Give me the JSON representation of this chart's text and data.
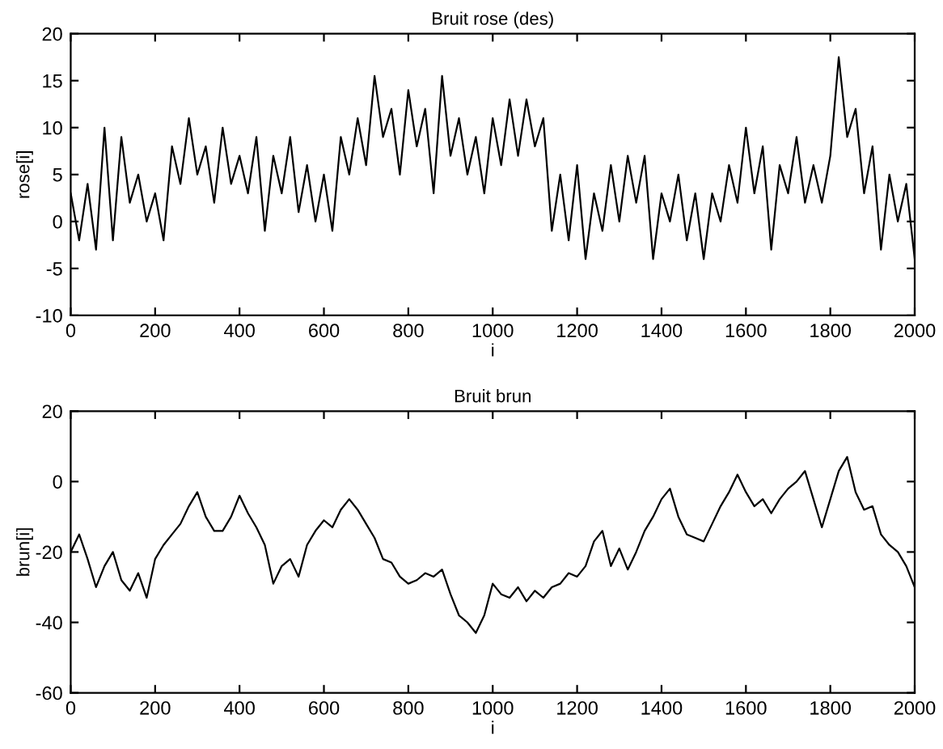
{
  "chart_data": [
    {
      "type": "line",
      "title": "Bruit rose (des)",
      "xlabel": "i",
      "ylabel": "rose[i]",
      "xlim": [
        0,
        2000
      ],
      "ylim": [
        -10,
        20
      ],
      "xticks": [
        0,
        200,
        400,
        600,
        800,
        1000,
        1200,
        1400,
        1600,
        1800,
        2000
      ],
      "yticks": [
        -10,
        -5,
        0,
        5,
        10,
        15,
        20
      ],
      "grid": false,
      "legend": false,
      "series": [
        {
          "color": "#000000",
          "x": [
            0,
            20,
            40,
            60,
            80,
            100,
            120,
            140,
            160,
            180,
            200,
            220,
            240,
            260,
            280,
            300,
            320,
            340,
            360,
            380,
            400,
            420,
            440,
            460,
            480,
            500,
            520,
            540,
            560,
            580,
            600,
            620,
            640,
            660,
            680,
            700,
            720,
            740,
            760,
            780,
            800,
            820,
            840,
            860,
            880,
            900,
            920,
            940,
            960,
            980,
            1000,
            1020,
            1040,
            1060,
            1080,
            1100,
            1120,
            1140,
            1160,
            1180,
            1200,
            1220,
            1240,
            1260,
            1280,
            1300,
            1320,
            1340,
            1360,
            1380,
            1400,
            1420,
            1440,
            1460,
            1480,
            1500,
            1520,
            1540,
            1560,
            1580,
            1600,
            1620,
            1640,
            1660,
            1680,
            1700,
            1720,
            1740,
            1760,
            1780,
            1800,
            1820,
            1840,
            1860,
            1880,
            1900,
            1920,
            1940,
            1960,
            1980,
            2000
          ],
          "values": [
            3,
            -2,
            4,
            -3,
            10,
            -2,
            9,
            2,
            5,
            0,
            3,
            -2,
            8,
            4,
            11,
            5,
            8,
            2,
            10,
            4,
            7,
            3,
            9,
            -1,
            7,
            3,
            9,
            1,
            6,
            0,
            5,
            -1,
            9,
            5,
            11,
            6,
            15.5,
            9,
            12,
            5,
            14,
            8,
            12,
            3,
            15.5,
            7,
            11,
            5,
            9,
            3,
            11,
            6,
            13,
            7,
            13,
            8,
            11,
            -1,
            5,
            -2,
            6,
            -4,
            3,
            -1,
            6,
            0,
            7,
            2,
            7,
            -4,
            3,
            0,
            5,
            -2,
            3,
            -4,
            3,
            0,
            6,
            2,
            10,
            3,
            8,
            -3,
            6,
            3,
            9,
            2,
            6,
            2,
            7,
            17.5,
            9,
            12,
            3,
            8,
            -3,
            5,
            0,
            4,
            -4
          ]
        }
      ]
    },
    {
      "type": "line",
      "title": "Bruit brun",
      "xlabel": "i",
      "ylabel": "brun[i]",
      "xlim": [
        0,
        2000
      ],
      "ylim": [
        -60,
        20
      ],
      "xticks": [
        0,
        200,
        400,
        600,
        800,
        1000,
        1200,
        1400,
        1600,
        1800,
        2000
      ],
      "yticks": [
        -60,
        -40,
        -20,
        0,
        20
      ],
      "grid": false,
      "legend": false,
      "series": [
        {
          "color": "#000000",
          "x": [
            0,
            20,
            40,
            60,
            80,
            100,
            120,
            140,
            160,
            180,
            200,
            220,
            240,
            260,
            280,
            300,
            320,
            340,
            360,
            380,
            400,
            420,
            440,
            460,
            480,
            500,
            520,
            540,
            560,
            580,
            600,
            620,
            640,
            660,
            680,
            700,
            720,
            740,
            760,
            780,
            800,
            820,
            840,
            860,
            880,
            900,
            920,
            940,
            960,
            980,
            1000,
            1020,
            1040,
            1060,
            1080,
            1100,
            1120,
            1140,
            1160,
            1180,
            1200,
            1220,
            1240,
            1260,
            1280,
            1300,
            1320,
            1340,
            1360,
            1380,
            1400,
            1420,
            1440,
            1460,
            1480,
            1500,
            1520,
            1540,
            1560,
            1580,
            1600,
            1620,
            1640,
            1660,
            1680,
            1700,
            1720,
            1740,
            1760,
            1780,
            1800,
            1820,
            1840,
            1860,
            1880,
            1900,
            1920,
            1940,
            1960,
            1980,
            2000
          ],
          "values": [
            -20,
            -15,
            -22,
            -30,
            -24,
            -20,
            -28,
            -31,
            -26,
            -33,
            -22,
            -18,
            -15,
            -12,
            -7,
            -3,
            -10,
            -14,
            -14,
            -10,
            -4,
            -9,
            -13,
            -18,
            -29,
            -24,
            -22,
            -27,
            -18,
            -14,
            -11,
            -13,
            -8,
            -5,
            -8,
            -12,
            -16,
            -22,
            -23,
            -27,
            -29,
            -28,
            -26,
            -27,
            -25,
            -32,
            -38,
            -40,
            -43,
            -38,
            -29,
            -32,
            -33,
            -30,
            -34,
            -31,
            -33,
            -30,
            -29,
            -26,
            -27,
            -24,
            -17,
            -14,
            -24,
            -19,
            -25,
            -20,
            -14,
            -10,
            -5,
            -2,
            -10,
            -15,
            -16,
            -17,
            -12,
            -7,
            -3,
            2,
            -3,
            -7,
            -5,
            -9,
            -5,
            -2,
            0,
            3,
            -5,
            -13,
            -5,
            3,
            7,
            -3,
            -8,
            -7,
            -15,
            -18,
            -20,
            -24,
            -30
          ]
        }
      ]
    }
  ]
}
